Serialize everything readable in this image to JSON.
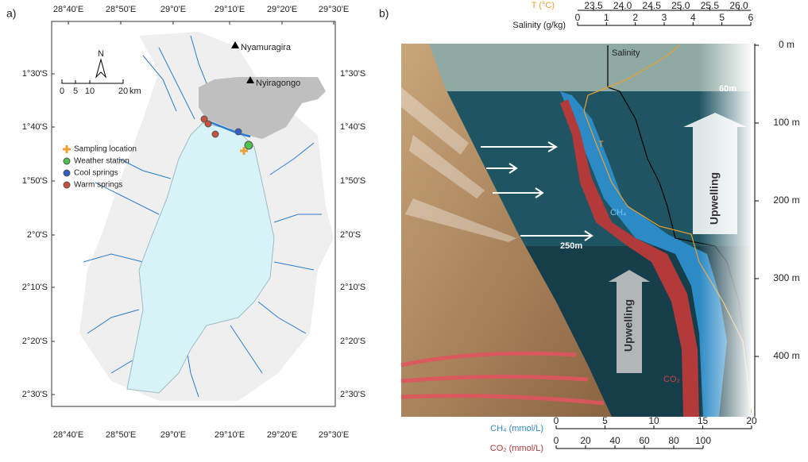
{
  "panel_a": {
    "label": "a)",
    "lon_ticks": [
      "28°40'E",
      "28°50'E",
      "29°0'E",
      "29°10'E",
      "29°20'E",
      "29°30'E"
    ],
    "lat_ticks": [
      "1°30'S",
      "1°40'S",
      "1°50'S",
      "2°0'S",
      "2°10'S",
      "2°20'S",
      "2°30'S"
    ],
    "volcanoes": [
      "Nyamuragira",
      "Nyiragongo"
    ],
    "north": "N",
    "scale": {
      "ticks": [
        "0",
        "5",
        "10",
        "20"
      ],
      "unit": "km"
    },
    "legend": [
      "Sampling location",
      "Weather station",
      "Cool springs",
      "Warm springs"
    ]
  },
  "panel_b": {
    "label": "b)",
    "temp_axis": {
      "title": "T (°C)",
      "ticks": [
        "23.5",
        "24.0",
        "24.5",
        "25.0",
        "25.5",
        "26.0"
      ]
    },
    "salinity_axis": {
      "title": "Salinity (g/kg)",
      "ticks": [
        "0",
        "1",
        "2",
        "3",
        "4",
        "5",
        "6"
      ]
    },
    "ch4_axis": {
      "title": "CH₄ (mmol/L)",
      "ticks": [
        "0",
        "5",
        "10",
        "15",
        "20"
      ]
    },
    "co2_axis": {
      "title": "CO₂ (mmol/L)",
      "ticks": [
        "0",
        "20",
        "40",
        "60",
        "80",
        "100"
      ]
    },
    "depth_ticks": [
      "0 m",
      "100 m",
      "200 m",
      "300 m",
      "400 m"
    ],
    "annotations": {
      "salinity": "Salinity",
      "temperature": "T",
      "ch4": "CH₄",
      "co2": "CO₂",
      "depth_60": "60m",
      "depth_250": "250m",
      "upwelling_upper": "Upwelling",
      "upwelling_lower": "Upwelling"
    }
  }
}
